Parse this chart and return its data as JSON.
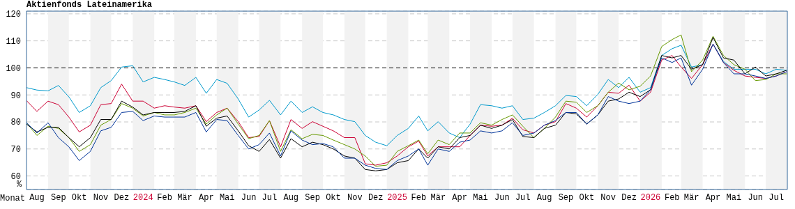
{
  "chart_data": {
    "type": "line",
    "title": "Aktienfonds Lateinamerika",
    "xlabel": "Monat",
    "ylabel": "%",
    "x": [
      "2023-08-01",
      "2023-08-16",
      "2023-09-01",
      "2023-09-16",
      "2023-10-01",
      "2023-10-16",
      "2023-11-01",
      "2023-11-16",
      "2023-12-01",
      "2023-12-16",
      "2024-01-01",
      "2024-01-16",
      "2024-02-01",
      "2024-02-16",
      "2024-03-01",
      "2024-03-16",
      "2024-04-01",
      "2024-04-16",
      "2024-05-01",
      "2024-05-16",
      "2024-06-01",
      "2024-06-16",
      "2024-07-01",
      "2024-07-16",
      "2024-08-01",
      "2024-08-16",
      "2024-09-01",
      "2024-09-16",
      "2024-10-01",
      "2024-10-16",
      "2024-11-01",
      "2024-11-16",
      "2024-12-01",
      "2024-12-16",
      "2025-01-01",
      "2025-01-16",
      "2025-02-01",
      "2025-02-16",
      "2025-03-01",
      "2025-03-16",
      "2025-04-01",
      "2025-04-16",
      "2025-05-01",
      "2025-05-16",
      "2025-06-01",
      "2025-06-16",
      "2025-07-01",
      "2025-07-16",
      "2025-08-01",
      "2025-08-16",
      "2025-09-01",
      "2025-09-16",
      "2025-10-01",
      "2025-10-16",
      "2025-11-01",
      "2025-11-16",
      "2025-12-01",
      "2025-12-16",
      "2026-01-01",
      "2026-01-16",
      "2026-02-01",
      "2026-02-16",
      "2026-03-01",
      "2026-03-16",
      "2026-04-01",
      "2026-04-16",
      "2026-05-01",
      "2026-05-16",
      "2026-06-01",
      "2026-06-16",
      "2026-07-01",
      "2026-07-16",
      "2026-07-31"
    ],
    "series": [
      {
        "color": "#0099cc",
        "values": [
          92.7,
          91.8,
          91.5,
          93.5,
          89.3,
          83.5,
          86,
          92.7,
          95.3,
          100.3,
          100.8,
          94.8,
          96.5,
          95.7,
          94.8,
          93.5,
          96.5,
          90.6,
          95.7,
          94.3,
          88.5,
          81.8,
          84.4,
          88,
          82.6,
          87.7,
          83.5,
          85.6,
          83.5,
          82.6,
          80.9,
          80.1,
          75,
          72.5,
          71.2,
          75,
          77.6,
          82.2,
          76.7,
          80.1,
          75.9,
          74.2,
          79.2,
          86.4,
          86,
          85.1,
          86,
          80.9,
          81.4,
          83.5,
          86,
          89.8,
          89.4,
          86,
          90.2,
          95.7,
          92.7,
          96.5,
          91,
          92.7,
          104.6,
          107.1,
          108.4,
          100.3,
          101.2,
          108.8,
          102.4,
          99.5,
          99.5,
          99.5,
          97.8,
          99.5,
          99.1
        ]
      },
      {
        "color": "#cc0033",
        "values": [
          87.9,
          83.9,
          87.7,
          86.4,
          81.8,
          76.3,
          78.8,
          86.4,
          86.8,
          94,
          87.7,
          87.7,
          85.1,
          86,
          85.5,
          85.1,
          86,
          80.1,
          83.5,
          85.1,
          80.1,
          74.2,
          74.6,
          80.5,
          70.8,
          80.9,
          77.6,
          80.1,
          78.4,
          76.7,
          74.2,
          74.2,
          64.5,
          64,
          64.9,
          67.4,
          70.8,
          72.9,
          67.4,
          70.8,
          70.8,
          70.8,
          75,
          78.8,
          78.4,
          78.8,
          81.4,
          77.1,
          75.9,
          78.8,
          80.1,
          86.8,
          85.1,
          81.8,
          86,
          91,
          90.6,
          93.6,
          87.7,
          91,
          102.9,
          104.6,
          100.3,
          96.1,
          101.2,
          108.8,
          102,
          99.1,
          97,
          96.5,
          96.1,
          97,
          98.6
        ]
      },
      {
        "color": "#669900",
        "values": [
          79.7,
          75,
          78.4,
          77.6,
          74.2,
          69.1,
          71.6,
          78.8,
          80.9,
          86.8,
          85.1,
          82.2,
          83.5,
          82.6,
          82.6,
          83.5,
          85.1,
          79.2,
          82.6,
          85.1,
          79.2,
          73.8,
          75,
          80.5,
          69.1,
          77.1,
          73.8,
          75.4,
          75,
          73.3,
          71.6,
          70,
          67.4,
          63.6,
          64,
          69.1,
          71.2,
          73.3,
          68.2,
          73.3,
          71.6,
          75.9,
          75.9,
          79.7,
          78.8,
          80.9,
          82.6,
          78.4,
          74.2,
          77.6,
          81.8,
          87.7,
          87.3,
          83.5,
          86,
          91,
          94.4,
          91.9,
          93.2,
          97,
          107.9,
          110.5,
          112.2,
          98.6,
          102.9,
          111.7,
          104.6,
          101.2,
          99.5,
          95.3,
          95.7,
          97.8,
          97.8
        ]
      },
      {
        "color": "#000000",
        "values": [
          79.2,
          76.3,
          78,
          78,
          74.2,
          70.8,
          74.2,
          80.9,
          80.9,
          87.7,
          85.5,
          82.6,
          83.5,
          83.5,
          83.5,
          83.9,
          86,
          78.4,
          81.4,
          82.2,
          76.7,
          71.2,
          69.1,
          73.5,
          66.6,
          73.8,
          70.8,
          72.5,
          71.6,
          70,
          67.4,
          66.6,
          62.4,
          61.9,
          62.4,
          64.9,
          65.7,
          70,
          66.6,
          70.8,
          70,
          74.2,
          75,
          78.8,
          77.6,
          78.8,
          80.9,
          74.6,
          74.2,
          77.6,
          78.8,
          83.5,
          83,
          79.2,
          82.6,
          87.7,
          88.5,
          91,
          89.4,
          91.9,
          104.6,
          103.7,
          104.6,
          99.5,
          101.2,
          111.3,
          103.7,
          102.9,
          97.8,
          100.3,
          97,
          97.8,
          99.1
        ]
      },
      {
        "color": "#003399",
        "values": [
          79.7,
          75.9,
          79.7,
          74.2,
          70.8,
          65.7,
          69.1,
          76.7,
          78,
          83.5,
          83.9,
          80.5,
          82.2,
          81.8,
          81.8,
          81.8,
          83.5,
          76.3,
          80.9,
          80.5,
          75,
          70,
          71.6,
          75.9,
          67.4,
          76.7,
          73.3,
          71.6,
          72,
          70.8,
          66.6,
          66.6,
          64,
          62.8,
          62.4,
          65.7,
          67.4,
          70,
          64,
          70,
          69.1,
          72.5,
          73.3,
          76.7,
          75.9,
          76.7,
          79.7,
          75,
          75.9,
          78.8,
          80.5,
          83.5,
          83.5,
          79.2,
          82.6,
          89.4,
          87.7,
          86.8,
          87.7,
          91.9,
          103.7,
          102,
          103.7,
          93.6,
          99.5,
          108.8,
          102,
          97.8,
          97.8,
          97,
          96.1,
          97,
          98.6
        ]
      }
    ],
    "xlim": [
      "2023-08-01",
      "2026-08-01"
    ],
    "xticks": [
      {
        "value": "2023-08-16",
        "label": "Aug"
      },
      {
        "value": "2023-09-16",
        "label": "Sep"
      },
      {
        "value": "2023-10-16",
        "label": "Okt"
      },
      {
        "value": "2023-11-16",
        "label": "Nov"
      },
      {
        "value": "2023-12-16",
        "label": "Dez"
      },
      {
        "value": "2024-01-16",
        "label": "2024"
      },
      {
        "value": "2024-02-16",
        "label": "Feb"
      },
      {
        "value": "2024-03-16",
        "label": "Mär"
      },
      {
        "value": "2024-04-16",
        "label": "Apr"
      },
      {
        "value": "2024-05-16",
        "label": "Mai"
      },
      {
        "value": "2024-06-16",
        "label": "Jun"
      },
      {
        "value": "2024-07-16",
        "label": "Jul"
      },
      {
        "value": "2024-08-16",
        "label": "Aug"
      },
      {
        "value": "2024-09-16",
        "label": "Sep"
      },
      {
        "value": "2024-10-16",
        "label": "Okt"
      },
      {
        "value": "2024-11-16",
        "label": "Nov"
      },
      {
        "value": "2024-12-16",
        "label": "Dez"
      },
      {
        "value": "2025-01-16",
        "label": "2025"
      },
      {
        "value": "2025-02-16",
        "label": "Feb"
      },
      {
        "value": "2025-03-16",
        "label": "Mär"
      },
      {
        "value": "2025-04-16",
        "label": "Apr"
      },
      {
        "value": "2025-05-16",
        "label": "Mai"
      },
      {
        "value": "2025-06-16",
        "label": "Jun"
      },
      {
        "value": "2025-07-16",
        "label": "Jul"
      },
      {
        "value": "2025-08-16",
        "label": "Aug"
      },
      {
        "value": "2025-09-16",
        "label": "Sep"
      },
      {
        "value": "2025-10-16",
        "label": "Okt"
      },
      {
        "value": "2025-11-16",
        "label": "Nov"
      },
      {
        "value": "2025-12-16",
        "label": "Dez"
      },
      {
        "value": "2026-01-16",
        "label": "2026"
      },
      {
        "value": "2026-02-16",
        "label": "Feb"
      },
      {
        "value": "2026-03-16",
        "label": "Mär"
      },
      {
        "value": "2026-04-16",
        "label": "Apr"
      },
      {
        "value": "2026-05-16",
        "label": "Mai"
      },
      {
        "value": "2026-06-16",
        "label": "Jun"
      },
      {
        "value": "2026-07-16",
        "label": "Jul"
      }
    ],
    "ylim": [
      55,
      121
    ],
    "yticks": [
      60,
      70,
      80,
      90,
      100,
      110,
      120
    ],
    "grid": "y",
    "ref_lines": [
      {
        "axis": "y",
        "value": 100,
        "color": "#000000",
        "line_style": "dashed"
      }
    ],
    "bands": [
      {
        "axis": "x",
        "from": "2023-09-01",
        "to": "2023-10-01",
        "color": "#f2f2f2"
      },
      {
        "axis": "x",
        "from": "2023-11-01",
        "to": "2023-12-01",
        "color": "#f2f2f2"
      },
      {
        "axis": "x",
        "from": "2024-01-01",
        "to": "2024-02-01",
        "color": "#f2f2f2"
      },
      {
        "axis": "x",
        "from": "2024-03-01",
        "to": "2024-04-01",
        "color": "#f2f2f2"
      },
      {
        "axis": "x",
        "from": "2024-05-01",
        "to": "2024-06-01",
        "color": "#f2f2f2"
      },
      {
        "axis": "x",
        "from": "2024-07-01",
        "to": "2024-08-01",
        "color": "#f2f2f2"
      },
      {
        "axis": "x",
        "from": "2024-09-01",
        "to": "2024-10-01",
        "color": "#f2f2f2"
      },
      {
        "axis": "x",
        "from": "2024-11-01",
        "to": "2024-12-01",
        "color": "#f2f2f2"
      },
      {
        "axis": "x",
        "from": "2025-01-01",
        "to": "2025-02-01",
        "color": "#f2f2f2"
      },
      {
        "axis": "x",
        "from": "2025-03-01",
        "to": "2025-04-01",
        "color": "#f2f2f2"
      },
      {
        "axis": "x",
        "from": "2025-05-01",
        "to": "2025-06-01",
        "color": "#f2f2f2"
      },
      {
        "axis": "x",
        "from": "2025-07-01",
        "to": "2025-08-01",
        "color": "#f2f2f2"
      },
      {
        "axis": "x",
        "from": "2025-09-01",
        "to": "2025-10-01",
        "color": "#f2f2f2"
      },
      {
        "axis": "x",
        "from": "2025-11-01",
        "to": "2025-12-01",
        "color": "#f2f2f2"
      },
      {
        "axis": "x",
        "from": "2026-01-01",
        "to": "2026-02-01",
        "color": "#f2f2f2"
      },
      {
        "axis": "x",
        "from": "2026-03-01",
        "to": "2026-04-01",
        "color": "#f2f2f2"
      },
      {
        "axis": "x",
        "from": "2026-05-01",
        "to": "2026-06-01",
        "color": "#f2f2f2"
      },
      {
        "axis": "x",
        "from": "2026-07-01",
        "to": "2026-08-01",
        "color": "#f2f2f2"
      }
    ]
  }
}
